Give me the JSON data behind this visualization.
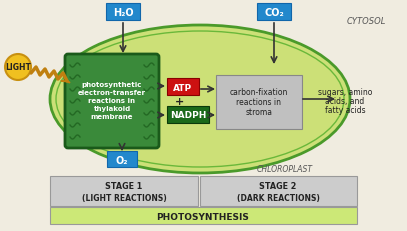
{
  "bg_color": "#f0ece0",
  "chloroplast_fill": "#cce077",
  "chloroplast_edge": "#4a9a2a",
  "chloroplast_edge2": "#6ab83a",
  "thylakoid_fill": "#3a8a3a",
  "thylakoid_edge": "#1a5a1a",
  "atp_fill": "#cc1111",
  "atp_edge": "#880000",
  "nadph_fill": "#1a6a1a",
  "nadph_edge": "#0a3a0a",
  "carbon_fill": "#c0c0c0",
  "carbon_edge": "#888888",
  "label_box_fill": "#2288cc",
  "label_box_edge": "#1166aa",
  "stage_fill": "#cccccc",
  "photosynthesis_fill": "#cce877",
  "stage_edge": "#999999",
  "light_fill": "#f0c020",
  "light_edge": "#c89010",
  "wave_color": "#c08010",
  "arrow_color": "#333333",
  "cytosol_color": "#555555",
  "chloroplast_label_color": "#555555",
  "text_dark": "#222222",
  "text_white": "#ffffff",
  "cytosol_text": "CYTOSOL",
  "chloroplast_text": "CHLOROPLAST",
  "title": "PHOTOSYNTHESIS",
  "stage1_line1": "STAGE 1",
  "stage1_line2": "(LIGHT REACTIONS)",
  "stage2_line1": "STAGE 2",
  "stage2_line2": "(DARK REACTIONS)",
  "h2o_text": "H₂O",
  "co2_text": "CO₂",
  "o2_text": "O₂",
  "atp_text": "ATP",
  "nadph_text": "NADPH",
  "light_text": "LIGHT",
  "thylakoid_line1": "photosynthetic",
  "thylakoid_line2": "electron-transfer",
  "thylakoid_line3": "reactions in",
  "thylakoid_line4": "thylakoid",
  "thylakoid_line5": "membrane",
  "carbon_line1": "carbon-fixation",
  "carbon_line2": "reactions in",
  "carbon_line3": "stroma",
  "products_line1": "sugars, amino",
  "products_line2": "acids, and",
  "products_line3": "fatty acids"
}
